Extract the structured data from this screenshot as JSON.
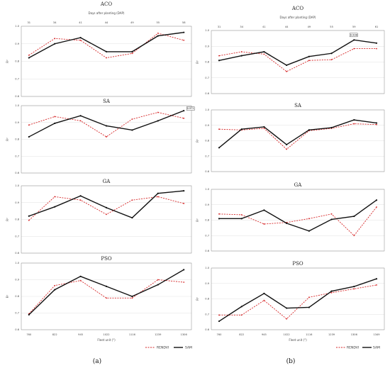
{
  "legend": {
    "rendvi": "RENDVI",
    "sam": "SAM"
  },
  "colors": {
    "rendvi": "#d62728",
    "sam": "#111111"
  },
  "captions": [
    "(a)",
    "(b)"
  ],
  "chart_data": [
    {
      "panel": "a",
      "type": "line",
      "title": "ACO",
      "top_axis_label": "Days after planting (DAP)",
      "top_ticks": [
        "31",
        "34",
        "41",
        "44",
        "49",
        "55",
        "58"
      ],
      "x": [
        "760",
        "822",
        "945",
        "1022",
        "1116",
        "1239",
        "1306"
      ],
      "yticks": [
        "0.6",
        "0.7",
        "0.8",
        "0.9",
        "1.0"
      ],
      "ylabel": "R²",
      "ylim": [
        0.6,
        1.0
      ],
      "series": [
        {
          "name": "RENDVI",
          "values": [
            0.835,
            0.93,
            0.92,
            0.82,
            0.845,
            0.96,
            0.92
          ]
        },
        {
          "name": "SAM",
          "values": [
            0.82,
            0.9,
            0.935,
            0.855,
            0.855,
            0.945,
            0.965
          ]
        }
      ]
    },
    {
      "panel": "a",
      "type": "line",
      "title": "SA",
      "annotation": {
        "text": "0.971",
        "index": 6,
        "series": 1
      },
      "x": [
        "760",
        "822",
        "945",
        "1022",
        "1116",
        "1239",
        "1306"
      ],
      "yticks": [
        "0.6",
        "0.7",
        "0.8",
        "0.9",
        "1.0"
      ],
      "ylabel": "R²",
      "ylim": [
        0.6,
        1.0
      ],
      "series": [
        {
          "name": "RENDVI",
          "values": [
            0.885,
            0.935,
            0.91,
            0.815,
            0.92,
            0.96,
            0.925
          ]
        },
        {
          "name": "SAM",
          "values": [
            0.815,
            0.895,
            0.94,
            0.88,
            0.855,
            0.91,
            0.97
          ]
        }
      ]
    },
    {
      "panel": "a",
      "type": "line",
      "title": "GA",
      "x": [
        "760",
        "822",
        "945",
        "1022",
        "1116",
        "1239",
        "1306"
      ],
      "yticks": [
        "0.6",
        "0.7",
        "0.8",
        "0.9",
        "1.0"
      ],
      "ylabel": "R²",
      "ylim": [
        0.6,
        1.0
      ],
      "series": [
        {
          "name": "RENDVI",
          "values": [
            0.795,
            0.935,
            0.915,
            0.83,
            0.915,
            0.935,
            0.895
          ]
        },
        {
          "name": "SAM",
          "values": [
            0.82,
            0.875,
            0.94,
            0.87,
            0.81,
            0.955,
            0.97
          ]
        }
      ]
    },
    {
      "panel": "a",
      "type": "line",
      "title": "PSO",
      "xlabel": "Fleet unit (°)",
      "x": [
        "760",
        "822",
        "945",
        "1022",
        "1116",
        "1239",
        "1306"
      ],
      "yticks": [
        "0.6",
        "0.7",
        "0.8",
        "0.9",
        "1.0"
      ],
      "ylabel": "R²",
      "ylim": [
        0.6,
        1.0
      ],
      "series": [
        {
          "name": "RENDVI",
          "values": [
            0.695,
            0.865,
            0.895,
            0.79,
            0.79,
            0.9,
            0.885
          ]
        },
        {
          "name": "SAM",
          "values": [
            0.69,
            0.84,
            0.92,
            0.86,
            0.8,
            0.87,
            0.96
          ]
        }
      ]
    },
    {
      "panel": "b",
      "type": "line",
      "title": "ACO",
      "top_axis_label": "Days after planting (DAP)",
      "top_ticks": [
        "31",
        "34",
        "41",
        "44",
        "49",
        "55",
        "59",
        "61"
      ],
      "annotation": {
        "text": "0.938",
        "index": 6,
        "series": 1
      },
      "x": [
        "760",
        "822",
        "945",
        "1022",
        "1116",
        "1239",
        "1306",
        "1349"
      ],
      "yticks": [
        "0.6",
        "0.7",
        "0.8",
        "0.9",
        "1.0"
      ],
      "ylabel": "R²",
      "ylim": [
        0.6,
        1.0
      ],
      "series": [
        {
          "name": "RENDVI",
          "values": [
            0.84,
            0.865,
            0.85,
            0.74,
            0.81,
            0.815,
            0.885,
            0.885
          ]
        },
        {
          "name": "SAM",
          "values": [
            0.81,
            0.84,
            0.865,
            0.78,
            0.835,
            0.855,
            0.94,
            0.92
          ]
        }
      ]
    },
    {
      "panel": "b",
      "type": "line",
      "title": "SA",
      "x": [
        "760",
        "822",
        "945",
        "1022",
        "1116",
        "1239",
        "1306",
        "1349"
      ],
      "yticks": [
        "0.6",
        "0.7",
        "0.8",
        "0.9",
        "1.0"
      ],
      "ylabel": "R²",
      "ylim": [
        0.6,
        1.0
      ],
      "series": [
        {
          "name": "RENDVI",
          "values": [
            0.875,
            0.87,
            0.88,
            0.745,
            0.865,
            0.88,
            0.91,
            0.905
          ]
        },
        {
          "name": "SAM",
          "values": [
            0.755,
            0.875,
            0.89,
            0.775,
            0.87,
            0.885,
            0.935,
            0.915
          ]
        }
      ]
    },
    {
      "panel": "b",
      "type": "line",
      "title": "GA",
      "x": [
        "760",
        "822",
        "945",
        "1022",
        "1116",
        "1239",
        "1306",
        "1349"
      ],
      "yticks": [
        "0.6",
        "0.7",
        "0.8",
        "0.9",
        "1.0"
      ],
      "ylabel": "R²",
      "ylim": [
        0.6,
        1.0
      ],
      "series": [
        {
          "name": "RENDVI",
          "values": [
            0.84,
            0.835,
            0.775,
            0.785,
            0.81,
            0.84,
            0.7,
            0.885
          ]
        },
        {
          "name": "SAM",
          "values": [
            0.81,
            0.81,
            0.865,
            0.78,
            0.73,
            0.805,
            0.825,
            0.93
          ]
        }
      ]
    },
    {
      "panel": "b",
      "type": "line",
      "title": "PSO",
      "xlabel": "Fleet unit (°)",
      "x": [
        "760",
        "822",
        "945",
        "1022",
        "1116",
        "1239",
        "1306",
        "1349"
      ],
      "yticks": [
        "0.6",
        "0.7",
        "0.8",
        "0.9",
        "1.0"
      ],
      "ylabel": "R²",
      "ylim": [
        0.6,
        1.0
      ],
      "series": [
        {
          "name": "RENDVI",
          "values": [
            0.695,
            0.695,
            0.79,
            0.67,
            0.81,
            0.84,
            0.865,
            0.89
          ]
        },
        {
          "name": "SAM",
          "values": [
            0.655,
            0.75,
            0.835,
            0.74,
            0.745,
            0.85,
            0.88,
            0.93
          ]
        }
      ]
    }
  ]
}
